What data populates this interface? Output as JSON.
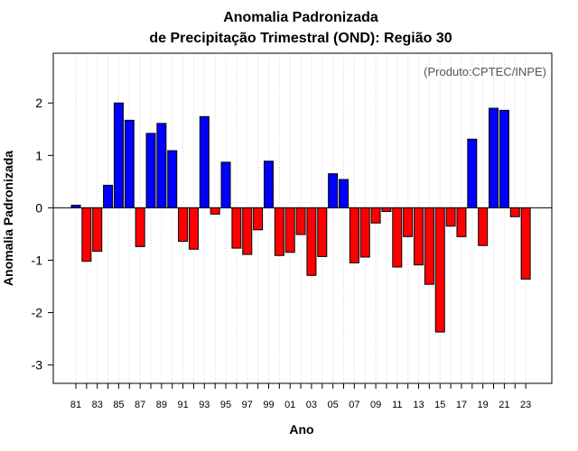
{
  "chart_data": {
    "type": "bar",
    "title": "Anomalia Padronizada",
    "subtitle": "de Precipitação Trimestral (OND): Região 30",
    "xlabel": "Ano",
    "ylabel": "Anomalia Padronizada",
    "annotation": "(Produto:CPTEC/INPE)",
    "ylim": [
      -3.35,
      2.95
    ],
    "yticks": [
      -3,
      -2,
      -1,
      0,
      1,
      2
    ],
    "grid": "vertical dotted",
    "categories": [
      "81",
      "82",
      "83",
      "84",
      "85",
      "86",
      "87",
      "88",
      "89",
      "90",
      "91",
      "92",
      "93",
      "94",
      "95",
      "96",
      "97",
      "98",
      "99",
      "00",
      "01",
      "02",
      "03",
      "04",
      "05",
      "06",
      "07",
      "08",
      "09",
      "10",
      "11",
      "12",
      "13",
      "14",
      "15",
      "16",
      "17",
      "18",
      "19",
      "20",
      "21",
      "22",
      "23"
    ],
    "xtick_labels": [
      "81",
      "83",
      "85",
      "87",
      "89",
      "91",
      "93",
      "95",
      "97",
      "99",
      "01",
      "03",
      "05",
      "07",
      "09",
      "11",
      "13",
      "15",
      "17",
      "19",
      "21",
      "23"
    ],
    "values": [
      0.05,
      -1.02,
      -0.83,
      0.43,
      2.0,
      1.67,
      -0.74,
      1.42,
      1.61,
      1.09,
      -0.64,
      -0.79,
      1.74,
      -0.12,
      0.87,
      -0.77,
      -0.89,
      -0.42,
      0.89,
      -0.91,
      -0.85,
      -0.51,
      -1.29,
      -0.93,
      0.65,
      0.54,
      -1.05,
      -0.94,
      -0.29,
      -0.07,
      -1.13,
      -0.55,
      -1.09,
      -1.46,
      -2.37,
      -0.35,
      -0.55,
      1.31,
      -0.72,
      1.9,
      1.86,
      -0.17,
      -1.36
    ],
    "colors": {
      "positive": "#0000ff",
      "negative": "#ff0000",
      "outline": "#000000",
      "zero_line": "#000000",
      "grid": "#d3d3d3"
    }
  }
}
